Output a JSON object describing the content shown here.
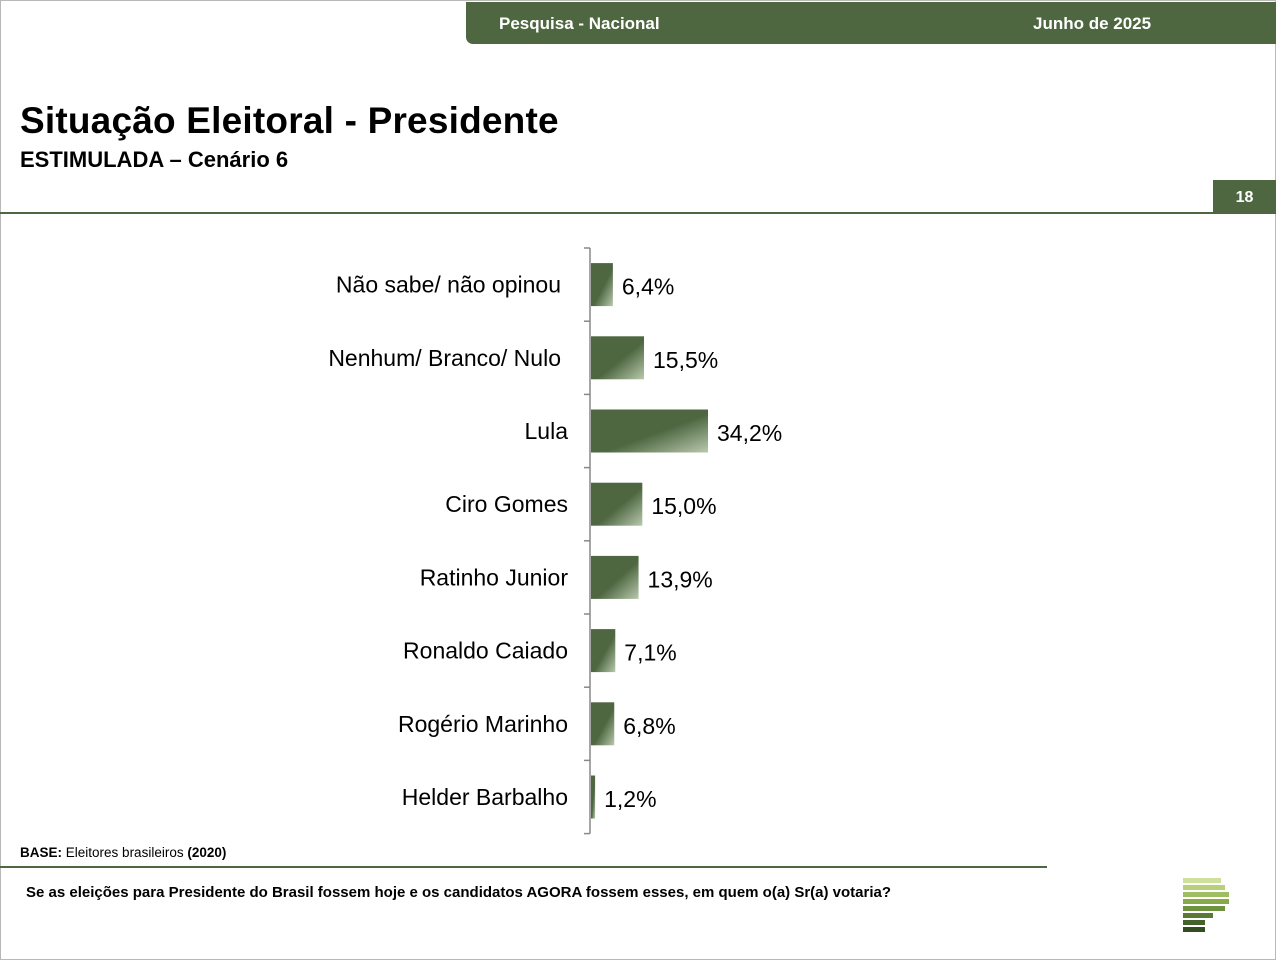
{
  "header": {
    "left_label": "Pesquisa - Nacional",
    "right_label": "Junho de 2025",
    "color": "#4e6741"
  },
  "title": "Situação Eleitoral - Presidente",
  "subtitle": "ESTIMULADA – Cenário 6",
  "page_number": "18",
  "base_note": {
    "label": "BASE:",
    "text": "Eleitores brasileiros",
    "count": "(2020)"
  },
  "question": "Se as eleições para Presidente do Brasil fossem hoje e os candidatos AGORA fossem esses, em quem o(a) Sr(a) votaria?",
  "chart_data": {
    "type": "bar",
    "orientation": "horizontal",
    "categories": [
      "Não sabe/ não opinou",
      "Nenhum/ Branco/ Nulo",
      "Lula",
      "Ciro Gomes",
      "Ratinho Junior",
      "Ronaldo Caiado",
      "Rogério Marinho",
      "Helder Barbalho"
    ],
    "values": [
      6.4,
      15.5,
      34.2,
      15.0,
      13.9,
      7.1,
      6.8,
      1.2
    ],
    "value_labels": [
      "6,4%",
      "15,5%",
      "34,2%",
      "15,0%",
      "13,9%",
      "7,1%",
      "6,8%",
      "1,2%"
    ],
    "bar_color": "#4e6741",
    "bar_gradient_end": "#b9c9ae",
    "grid": false
  }
}
